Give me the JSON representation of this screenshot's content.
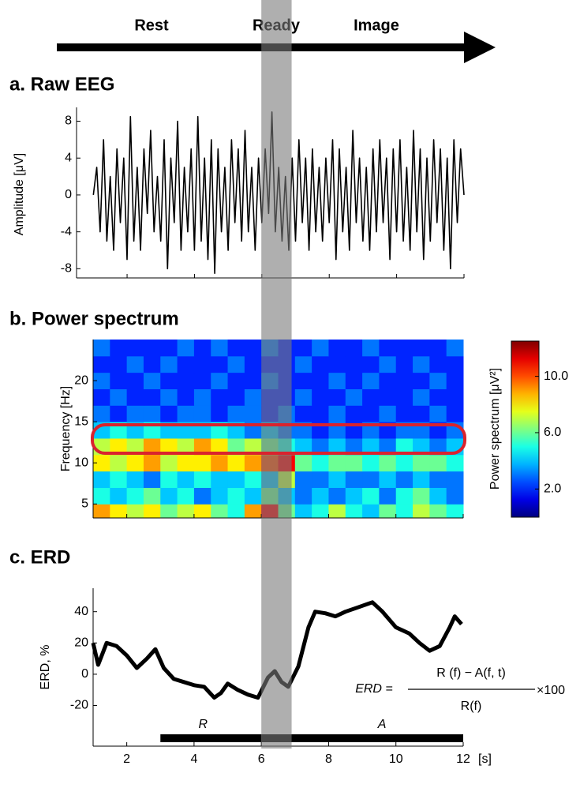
{
  "timeline": {
    "labels": [
      "Rest",
      "Ready",
      "Image"
    ]
  },
  "highlight": {
    "xlim": [
      6,
      6.9
    ]
  },
  "chart_data": [
    {
      "type": "line",
      "title": "a. Raw EEG",
      "ylabel": "Amplitude [μV]",
      "color": "#000000",
      "xlim": [
        0.5,
        12
      ],
      "ylim": [
        -9,
        9.5
      ],
      "yticks": [
        -8,
        -4,
        0,
        4,
        8
      ],
      "x": [
        1,
        1.1,
        1.2,
        1.3,
        1.4,
        1.5,
        1.6,
        1.7,
        1.8,
        1.9,
        2,
        2.1,
        2.2,
        2.3,
        2.4,
        2.5,
        2.6,
        2.7,
        2.8,
        2.9,
        3,
        3.1,
        3.2,
        3.3,
        3.4,
        3.5,
        3.6,
        3.7,
        3.8,
        3.9,
        4,
        4.1,
        4.2,
        4.3,
        4.4,
        4.5,
        4.6,
        4.7,
        4.8,
        4.9,
        5,
        5.1,
        5.2,
        5.3,
        5.4,
        5.5,
        5.6,
        5.7,
        5.8,
        5.9,
        6,
        6.1,
        6.2,
        6.3,
        6.4,
        6.5,
        6.6,
        6.7,
        6.8,
        6.9,
        7,
        7.1,
        7.2,
        7.3,
        7.4,
        7.5,
        7.6,
        7.7,
        7.8,
        7.9,
        8,
        8.1,
        8.2,
        8.3,
        8.4,
        8.5,
        8.6,
        8.7,
        8.8,
        8.9,
        9,
        9.1,
        9.2,
        9.3,
        9.4,
        9.5,
        9.6,
        9.7,
        9.8,
        9.9,
        10,
        10.1,
        10.2,
        10.3,
        10.4,
        10.5,
        10.6,
        10.7,
        10.8,
        10.9,
        11,
        11.1,
        11.2,
        11.3,
        11.4,
        11.5,
        11.6,
        11.7,
        11.8,
        11.9,
        12
      ],
      "values": [
        0,
        3,
        -4,
        6,
        -5,
        2,
        -6,
        5,
        -3,
        4,
        -7,
        8.5,
        -5,
        3,
        -6,
        5,
        -2,
        7,
        -4,
        2,
        -5,
        6,
        -8,
        4,
        -3,
        8,
        -6,
        3,
        -4,
        5,
        -6,
        8.5,
        -5,
        4,
        -7,
        6,
        -8.5,
        5,
        -4,
        3,
        -6,
        6,
        -3,
        5,
        -5,
        7,
        -4,
        3,
        -6,
        4,
        -3,
        5,
        -2,
        9,
        -4,
        3,
        -5,
        2,
        -6,
        4,
        -5,
        6,
        -3,
        4,
        -6,
        5,
        -4,
        3,
        -5,
        4,
        -3,
        6,
        -7,
        5,
        -4,
        3,
        -6,
        7,
        -3,
        4,
        -5,
        3,
        -6,
        5,
        -4,
        6,
        -3,
        4,
        -7,
        5,
        -4,
        6,
        -5,
        3,
        -6,
        7,
        -4,
        5,
        -7,
        4,
        -5,
        6,
        -3,
        5,
        -6,
        4,
        -8,
        6,
        -3,
        5,
        0
      ]
    },
    {
      "type": "heatmap",
      "title": "b. Power spectrum",
      "ylabel": "Frequency [Hz]",
      "xlim": [
        1,
        12
      ],
      "ylim": [
        3.3,
        25
      ],
      "yticks": [
        5,
        10,
        15,
        20
      ],
      "x_bins": [
        1,
        1.5,
        2,
        2.5,
        3,
        3.5,
        4,
        4.5,
        5,
        5.5,
        6,
        6.5,
        7,
        7.5,
        8,
        8.5,
        9,
        9.5,
        10,
        10.5,
        11,
        11.5,
        12
      ],
      "y_bins": [
        3.3,
        5,
        7,
        9,
        11,
        13,
        15,
        17,
        19,
        21,
        23,
        25
      ],
      "z": [
        [
          9,
          8,
          7,
          8,
          6,
          7,
          8,
          6,
          5,
          9,
          11,
          6,
          4,
          5,
          7,
          5,
          4,
          6,
          5,
          7,
          6,
          5
        ],
        [
          5,
          4,
          5,
          6,
          4,
          5,
          3,
          4,
          5,
          4,
          6,
          4,
          3,
          4,
          3,
          4,
          5,
          3,
          5,
          6,
          4,
          3
        ],
        [
          4,
          5,
          4,
          3,
          5,
          4,
          5,
          4,
          4,
          5,
          4,
          7,
          3,
          3,
          4,
          3,
          3,
          4,
          3,
          4,
          3,
          3
        ],
        [
          8,
          7,
          8,
          9,
          7,
          8,
          8,
          9,
          8,
          9,
          10,
          11,
          6,
          5,
          6,
          6,
          5,
          6,
          5,
          6,
          6,
          5
        ],
        [
          7,
          8,
          7,
          9,
          8,
          7,
          9,
          8,
          6,
          7,
          6,
          5,
          4,
          3,
          4,
          3,
          4,
          3,
          5,
          4,
          3,
          4
        ],
        [
          4,
          5,
          4,
          5,
          4,
          4,
          4,
          5,
          4,
          3,
          4,
          3,
          3,
          2,
          3,
          2,
          3,
          2,
          3,
          3,
          2,
          3
        ],
        [
          3,
          2,
          3,
          3,
          2,
          3,
          3,
          2,
          3,
          3,
          2,
          3,
          2,
          2,
          3,
          2,
          2,
          3,
          2,
          2,
          3,
          2
        ],
        [
          2,
          3,
          2,
          2,
          3,
          2,
          3,
          2,
          2,
          3,
          2,
          2,
          3,
          2,
          2,
          3,
          2,
          2,
          2,
          3,
          2,
          2
        ],
        [
          3,
          2,
          2,
          3,
          2,
          2,
          2,
          3,
          2,
          2,
          3,
          2,
          2,
          2,
          3,
          2,
          3,
          2,
          2,
          2,
          3,
          2
        ],
        [
          2,
          2,
          3,
          2,
          3,
          2,
          2,
          2,
          3,
          2,
          2,
          2,
          3,
          2,
          2,
          2,
          2,
          3,
          2,
          3,
          2,
          2
        ],
        [
          3,
          2,
          2,
          2,
          2,
          3,
          2,
          3,
          2,
          2,
          3,
          2,
          2,
          3,
          2,
          2,
          3,
          2,
          2,
          2,
          2,
          3
        ]
      ],
      "colorbar": {
        "label": "Power spectrum [μV²]",
        "lim": [
          0,
          12.5
        ],
        "ticks": [
          {
            "value": 2,
            "label": "2.0"
          },
          {
            "value": 6,
            "label": "6.0"
          },
          {
            "value": 10,
            "label": "10.0"
          }
        ]
      }
    },
    {
      "type": "line",
      "title": "c. ERD",
      "ylabel": "ERD, %",
      "xlabel": "[s]",
      "color": "#000000",
      "xlim": [
        1,
        12
      ],
      "ylim": [
        -46,
        55
      ],
      "yticks": [
        -20,
        0,
        20,
        40
      ],
      "xticks": [
        2,
        4,
        6,
        8,
        10,
        12
      ],
      "x": [
        1,
        1.15,
        1.4,
        1.7,
        2,
        2.3,
        2.6,
        2.85,
        3.1,
        3.4,
        3.7,
        4,
        4.3,
        4.6,
        4.8,
        5,
        5.3,
        5.6,
        5.9,
        6.2,
        6.4,
        6.6,
        6.8,
        7.1,
        7.4,
        7.6,
        7.9,
        8.2,
        8.5,
        8.9,
        9.3,
        9.6,
        10,
        10.4,
        10.7,
        11,
        11.3,
        11.6,
        11.75,
        11.95
      ],
      "values": [
        20,
        6,
        20,
        18,
        12,
        4,
        10,
        16,
        4,
        -3,
        -5,
        -7,
        -8,
        -15,
        -12,
        -6,
        -10,
        -13,
        -15,
        -2,
        2,
        -5,
        -8,
        5,
        30,
        40,
        39,
        37,
        40,
        43,
        46,
        40,
        30,
        26,
        20,
        15,
        18,
        30,
        37,
        32
      ],
      "periods": [
        {
          "label": "R",
          "start": 3,
          "end": 6
        },
        {
          "label": "A",
          "start": 6,
          "end": 12
        }
      ],
      "formula": {
        "lhs": "ERD =",
        "numerator": "R (f) − A(f, t)",
        "denominator": "R(f)",
        "factor": "×100"
      }
    }
  ]
}
